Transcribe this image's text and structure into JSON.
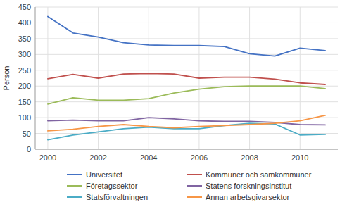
{
  "chart_data": {
    "type": "line",
    "ylabel": "Person",
    "x": [
      2000,
      2001,
      2002,
      2003,
      2004,
      2005,
      2006,
      2007,
      2008,
      2009,
      2010,
      2011
    ],
    "xlim": [
      1999.5,
      2011.5
    ],
    "xticks": [
      2000,
      2002,
      2004,
      2006,
      2008,
      2010
    ],
    "ylim": [
      0,
      450
    ],
    "yticks": [
      0,
      50,
      100,
      150,
      200,
      250,
      300,
      350,
      400,
      450
    ],
    "grid": true,
    "legend": "bottom",
    "series": [
      {
        "name": "Universitet",
        "color": "#4472C4",
        "values": [
          420,
          368,
          355,
          337,
          330,
          328,
          328,
          325,
          302,
          295,
          320,
          312
        ]
      },
      {
        "name": "Kommuner och samkommuner",
        "color": "#C0504D",
        "values": [
          223,
          237,
          225,
          238,
          240,
          238,
          225,
          228,
          228,
          222,
          210,
          205
        ]
      },
      {
        "name": "Företagssektor",
        "color": "#9BBB59",
        "values": [
          143,
          163,
          155,
          155,
          160,
          178,
          190,
          198,
          200,
          200,
          200,
          192
        ]
      },
      {
        "name": "Statens forskningsinstitut",
        "color": "#8064A2",
        "values": [
          90,
          92,
          90,
          90,
          100,
          96,
          90,
          88,
          88,
          85,
          78,
          77
        ]
      },
      {
        "name": "Statsförvaltningen",
        "color": "#4BACC6",
        "values": [
          30,
          45,
          55,
          65,
          70,
          65,
          65,
          75,
          82,
          80,
          45,
          47
        ]
      },
      {
        "name": "Annan arbetsgivarsektor",
        "color": "#F79646",
        "values": [
          58,
          63,
          72,
          78,
          72,
          68,
          72,
          75,
          78,
          82,
          90,
          107
        ]
      }
    ]
  }
}
